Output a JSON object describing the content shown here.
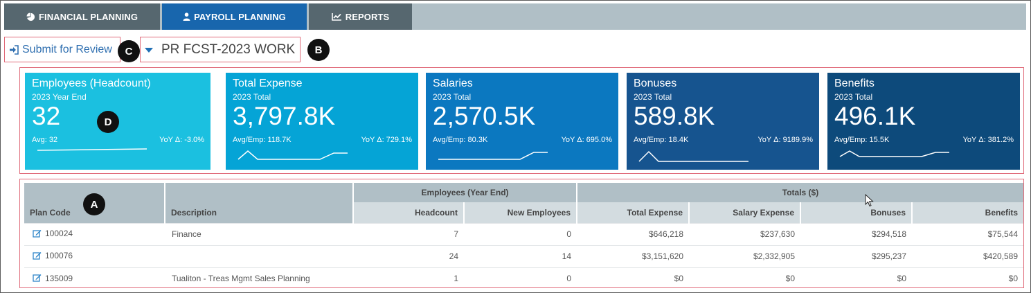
{
  "tabs": [
    {
      "label": "FINANCIAL PLANNING",
      "icon": "pie-chart-icon"
    },
    {
      "label": "PAYROLL PLANNING",
      "icon": "user-icon",
      "active": true
    },
    {
      "label": "REPORTS",
      "icon": "line-chart-icon"
    }
  ],
  "actions": {
    "submit_label": "Submit for Review",
    "plan_name": "PR FCST-2023 WORK"
  },
  "markers": {
    "a": "A",
    "b": "B",
    "c": "C",
    "d": "D"
  },
  "kpis": [
    {
      "title": "Employees (Headcount)",
      "sub": "2023 Year End",
      "value": "32",
      "avg": "Avg: 32",
      "yoy": "YoY Δ: -3.0%",
      "color": "#1bc0e0"
    },
    {
      "title": "Total Expense",
      "sub": "2023 Total",
      "value": "3,797.8K",
      "avg": "Avg/Emp: 118.7K",
      "yoy": "YoY Δ: 729.1%",
      "color": "#05a4d6"
    },
    {
      "title": "Salaries",
      "sub": "2023 Total",
      "value": "2,570.5K",
      "avg": "Avg/Emp: 80.3K",
      "yoy": "YoY Δ: 695.0%",
      "color": "#0b78c0"
    },
    {
      "title": "Bonuses",
      "sub": "2023 Total",
      "value": "589.8K",
      "avg": "Avg/Emp: 18.4K",
      "yoy": "YoY Δ: 9189.9%",
      "color": "#16548f"
    },
    {
      "title": "Benefits",
      "sub": "2023 Total",
      "value": "496.1K",
      "avg": "Avg/Emp: 15.5K",
      "yoy": "YoY Δ: 381.2%",
      "color": "#0d4a7b"
    }
  ],
  "table": {
    "col_plan_code": "Plan Code",
    "col_description": "Description",
    "group_employees": "Employees (Year End)",
    "group_totals": "Totals ($)",
    "col_headcount": "Headcount",
    "col_new_employees": "New Employees",
    "col_total_expense": "Total Expense",
    "col_salary_expense": "Salary Expense",
    "col_bonuses": "Bonuses",
    "col_benefits": "Benefits",
    "rows": [
      {
        "code": "100024",
        "description": "Finance",
        "headcount": "7",
        "new_employees": "0",
        "total_expense": "$646,218",
        "salary_expense": "$237,630",
        "bonuses": "$294,518",
        "benefits": "$75,544"
      },
      {
        "code": "100076",
        "description": "",
        "headcount": "24",
        "new_employees": "14",
        "total_expense": "$3,151,620",
        "salary_expense": "$2,332,905",
        "bonuses": "$295,237",
        "benefits": "$420,589"
      },
      {
        "code": "135009",
        "description": "Tualiton - Treas Mgmt Sales Planning",
        "headcount": "1",
        "new_employees": "0",
        "total_expense": "$0",
        "salary_expense": "$0",
        "bonuses": "$0",
        "benefits": "$0"
      }
    ]
  }
}
